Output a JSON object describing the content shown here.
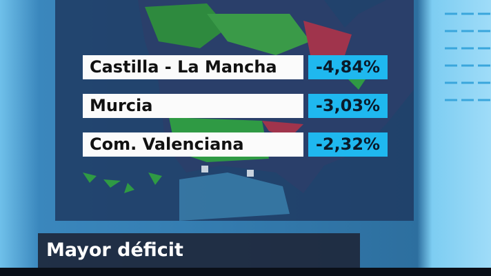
{
  "caption": "Mayor déficit",
  "rows": [
    {
      "region": "Castilla - La Mancha",
      "deficit": "-4,84%"
    },
    {
      "region": "Murcia",
      "deficit": "-3,03%"
    },
    {
      "region": "Com. Valenciana",
      "deficit": "-2,32%"
    }
  ]
}
